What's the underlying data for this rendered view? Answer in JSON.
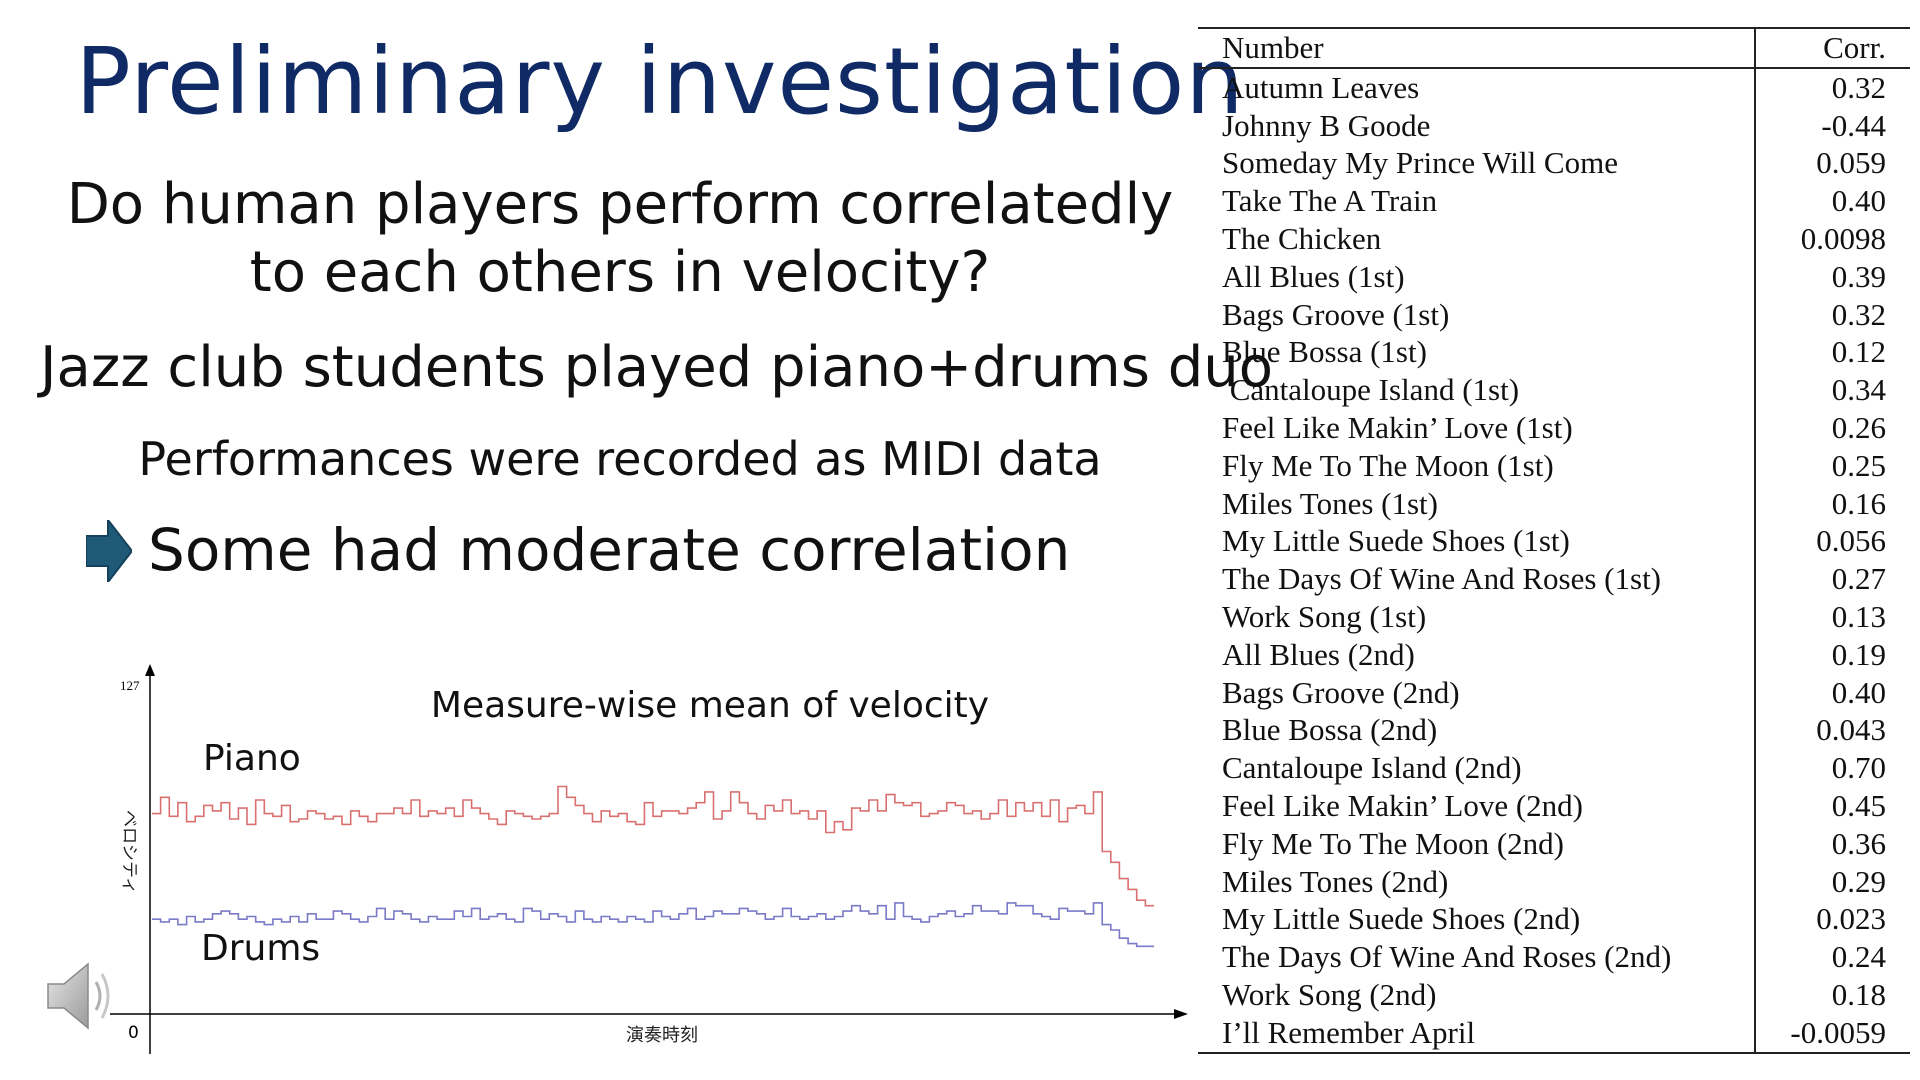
{
  "slide": {
    "title": "Preliminary investigation",
    "question_line1": "Do human players perform correlatedly",
    "question_line2": "to each others in velocity?",
    "jazz": "Jazz club students played piano+drums duo",
    "midi": "Performances were recorded as MIDI data",
    "finding": "Some had moderate correlation",
    "arrow_icon": "right-arrow-icon",
    "speaker_icon": "speaker-icon",
    "accent_color": "#0f2a64"
  },
  "table": {
    "headers": [
      "Number",
      "Corr."
    ],
    "rows": [
      [
        "Autumn Leaves",
        "0.32"
      ],
      [
        "Johnny B Goode",
        "-0.44"
      ],
      [
        "Someday My Prince Will Come",
        "0.059"
      ],
      [
        "Take The A Train",
        "0.40"
      ],
      [
        "The Chicken",
        "0.0098"
      ],
      [
        "All Blues (1st)",
        "0.39"
      ],
      [
        "Bags Groove (1st)",
        "0.32"
      ],
      [
        "Blue Bossa (1st)",
        "0.12"
      ],
      [
        " Cantaloupe Island (1st)",
        "0.34"
      ],
      [
        "Feel Like Makin’ Love (1st)",
        "0.26"
      ],
      [
        "Fly Me To The Moon (1st)",
        "0.25"
      ],
      [
        "Miles Tones (1st)",
        "0.16"
      ],
      [
        "My Little Suede Shoes (1st)",
        "0.056"
      ],
      [
        "The Days Of Wine And Roses (1st)",
        "0.27"
      ],
      [
        "Work Song (1st)",
        "0.13"
      ],
      [
        "All Blues (2nd)",
        "0.19"
      ],
      [
        "Bags Groove (2nd)",
        "0.40"
      ],
      [
        "Blue Bossa (2nd)",
        "0.043"
      ],
      [
        "Cantaloupe Island (2nd)",
        "0.70"
      ],
      [
        "Feel Like Makin’ Love (2nd)",
        "0.45"
      ],
      [
        "Fly Me To The Moon (2nd)",
        "0.36"
      ],
      [
        "Miles Tones (2nd)",
        "0.29"
      ],
      [
        "My Little Suede Shoes (2nd)",
        "0.023"
      ],
      [
        "The Days Of Wine And Roses (2nd)",
        "0.24"
      ],
      [
        "Work Song (2nd)",
        "0.18"
      ],
      [
        "I’ll Remember April",
        "-0.0059"
      ]
    ]
  },
  "chart_data": {
    "type": "line",
    "step": true,
    "title": "Measure-wise mean of velocity",
    "xlabel": "演奏時刻",
    "ylabel": "ベロシティ",
    "y_tick_top": "127",
    "x_tick_origin": "0",
    "ylim": [
      0,
      127
    ],
    "colors": {
      "Piano": "#d97070",
      "Drums": "#7a7ac8"
    },
    "series": [
      {
        "name": "Piano",
        "values": [
          74,
          80,
          73,
          78,
          71,
          73,
          77,
          75,
          78,
          72,
          76,
          70,
          79,
          74,
          73,
          77,
          71,
          72,
          75,
          74,
          72,
          73,
          70,
          75,
          73,
          71,
          74,
          74,
          76,
          74,
          79,
          73,
          75,
          74,
          76,
          73,
          79,
          76,
          74,
          72,
          70,
          75,
          74,
          73,
          72,
          73,
          74,
          84,
          80,
          77,
          74,
          71,
          75,
          73,
          74,
          71,
          70,
          78,
          73,
          75,
          75,
          74,
          76,
          78,
          82,
          72,
          75,
          82,
          78,
          74,
          72,
          77,
          75,
          79,
          74,
          75,
          72,
          75,
          67,
          71,
          68,
          76,
          75,
          79,
          75,
          81,
          78,
          77,
          78,
          73,
          74,
          75,
          78,
          77,
          74,
          75,
          72,
          74,
          79,
          73,
          78,
          75,
          78,
          73,
          79,
          71,
          76,
          77,
          74,
          82,
          60,
          56,
          50,
          46,
          42,
          40
        ]
      },
      {
        "name": "Drums",
        "values": [
          35,
          34,
          35,
          33,
          36,
          34,
          35,
          37,
          38,
          37,
          35,
          36,
          34,
          33,
          35,
          34,
          36,
          34,
          37,
          35,
          35,
          38,
          37,
          35,
          34,
          36,
          39,
          35,
          38,
          37,
          35,
          34,
          36,
          35,
          35,
          38,
          36,
          39,
          35,
          36,
          37,
          35,
          34,
          39,
          38,
          35,
          37,
          36,
          34,
          38,
          35,
          34,
          36,
          35,
          34,
          36,
          35,
          34,
          38,
          36,
          35,
          37,
          39,
          35,
          36,
          38,
          37,
          37,
          39,
          38,
          37,
          35,
          36,
          39,
          36,
          35,
          36,
          37,
          35,
          36,
          38,
          40,
          38,
          37,
          40,
          35,
          41,
          36,
          35,
          34,
          36,
          37,
          38,
          36,
          37,
          40,
          38,
          38,
          37,
          41,
          40,
          40,
          37,
          36,
          35,
          39,
          38,
          38,
          37,
          41,
          33,
          31,
          28,
          26,
          25,
          25
        ]
      }
    ]
  }
}
